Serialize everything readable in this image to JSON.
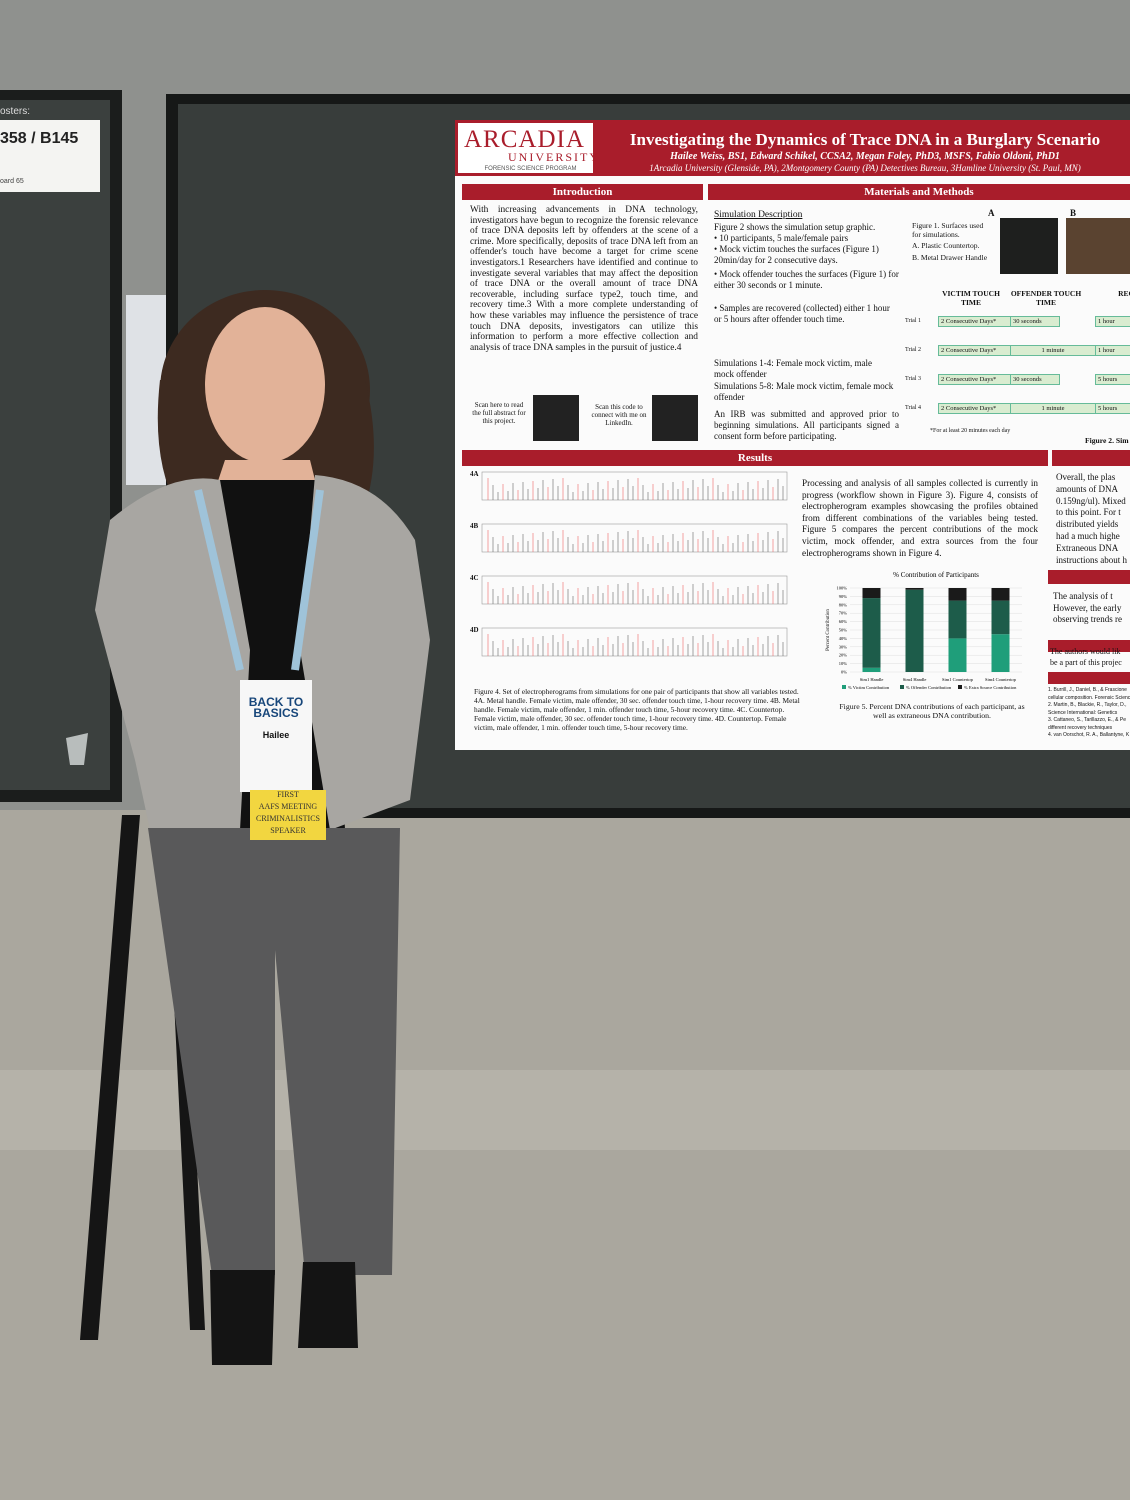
{
  "booth": {
    "sign_top": "osters:",
    "sign": "358 / B145",
    "sign_bottom": "oard 65"
  },
  "poster": {
    "logo": "ARCADIA",
    "logo_sub": "UNIVERSITY",
    "program": "FORENSIC SCIENCE PROGRAM",
    "title": "Investigating the Dynamics of Trace DNA in a Burglary Scenario",
    "authors": "Hailee Weiss, BS1, Edward Schikel, CCSA2, Megan Foley, PhD3, MSFS, Fabio Oldoni, PhD1",
    "affiliations": "1Arcadia University (Glenside, PA), 2Montgomery County (PA) Detectives Bureau, 3Hamline University (St. Paul, MN)",
    "introduction": {
      "heading": "Introduction",
      "text": "With increasing advancements in DNA technology, investigators have begun to recognize the forensic relevance of trace DNA deposits left by offenders at the scene of a crime. More specifically, deposits of trace DNA left from an offender's touch have become a target for crime scene investigators.1 Researchers have identified and continue to investigate several variables that may affect the deposition of trace DNA or the overall amount of trace DNA recoverable, including surface type2, touch time, and recovery time.3 With a more complete understanding of how these variables may influence the persistence of trace touch DNA deposits, investigators can utilize this information to perform a more effective collection and analysis of trace DNA samples in the pursuit of justice.4",
      "qr_abstract": "Scan here to read the full abstract for this project.",
      "qr_linkedin": "Scan this code to connect with me on LinkedIn."
    },
    "methods": {
      "heading": "Materials and Methods",
      "subheading": "Simulation Description",
      "lines": [
        "Figure 2 shows the simulation setup graphic.",
        "• 10 participants, 5 male/female pairs",
        "• Mock victim touches the surfaces (Figure 1) 20min/day for 2 consecutive days.",
        "• Mock offender touches the surfaces (Figure 1) for either 30 seconds or 1 minute.",
        "• Samples are recovered (collected) either 1 hour or 5 hours after offender touch time."
      ],
      "sim_a": "Simulations 1-4: Female mock victim, male mock offender",
      "sim_b": "Simulations 5-8: Male mock victim, female mock offender",
      "irb": "An IRB was submitted and approved prior to beginning simulations. All participants signed a consent form before participating.",
      "figure1": "Figure 1. Surfaces used for simulations.",
      "figure1_a": "A. Plastic Countertop.",
      "figure1_b": "B. Metal Drawer Handle",
      "label_a": "A",
      "label_b": "B",
      "table": {
        "headers": [
          "VICTIM TOUCH TIME",
          "OFFENDER TOUCH TIME",
          "REC"
        ],
        "rows": [
          [
            "Trial 1",
            "2 Consecutive Days*",
            "30 seconds",
            "1 hour"
          ],
          [
            "Trial 2",
            "2 Consecutive Days*",
            "1 minute",
            "1 hour"
          ],
          [
            "Trial 3",
            "2 Consecutive Days*",
            "30 seconds",
            "5 hours"
          ],
          [
            "Trial 4",
            "2 Consecutive Days*",
            "1 minute",
            "5 hours"
          ]
        ],
        "footnote": "*For at least 20 minutes each day",
        "caption": "Figure 2. Sim"
      }
    },
    "results": {
      "heading": "Results",
      "panels": [
        "4A",
        "4B",
        "4C",
        "4D"
      ],
      "text": "Processing and analysis of all samples collected is currently in progress (workflow shown in Figure 3). Figure 4, consists of electropherogram examples showcasing the profiles obtained from different combinations of the variables being tested. Figure 5 compares the percent contributions of the mock victim, mock offender, and extra sources from the four electropherograms shown in Figure 4.",
      "figure4": "Figure 4. Set of electropherograms from simulations for one pair of participants that show all variables tested. 4A. Metal handle. Female victim, male offender, 30 sec. offender touch time, 1-hour recovery time. 4B. Metal handle. Female victim, male offender, 1 min. offender touch time, 5-hour recovery time. 4C. Countertop. Female victim, male offender, 30 sec. offender touch time, 1-hour recovery time. 4D. Countertop. Female victim, male offender, 1 min. offender touch time, 5-hour recovery time.",
      "figure5": "Figure 5. Percent DNA contributions of each participant, as well as extraneous DNA contribution."
    },
    "right_column": {
      "conclusion": [
        "Overall, the plas",
        "amounts of DNA",
        "0.159ng/ul). Mixed",
        "to this point. For t",
        "distributed yields",
        "had a much highe",
        "Extraneous DNA",
        "instructions about h"
      ],
      "future": [
        "The analysis of t",
        "However, the early",
        "observing trends re"
      ],
      "ack": [
        "The authors would lik",
        "be a part of this projec"
      ],
      "refs": [
        "1. Burrill, J., Daniel, B., & Frascione",
        "cellular composition. Forensic Scienc",
        "2. Martin, B., Blackie, R., Taylor, D.,",
        "Science International: Genetics",
        "3. Cattaneo, S., Tarillazzo, E., & Pe",
        "different recovery techniques",
        "4. van Oorschot, R. A., Ballantyne, K"
      ]
    }
  },
  "chart_data": {
    "type": "bar",
    "stacked": true,
    "title": "% Contribution of Participants",
    "ylabel": "Percent Contribution",
    "categories": [
      "Sim1 Handle",
      "Sim4 Handle",
      "Sim1 Countertop",
      "Sim4 Countertop"
    ],
    "series": [
      {
        "name": "% Victim Contribution",
        "color": "#1f9e7a",
        "values": [
          5,
          0,
          40,
          45
        ]
      },
      {
        "name": "% Offender Contribution",
        "color": "#1d5c4a",
        "values": [
          83,
          98,
          45,
          40
        ]
      },
      {
        "name": "% Extra Source Contribution",
        "color": "#1a1a1a",
        "values": [
          12,
          2,
          15,
          15
        ]
      }
    ],
    "ylim": [
      0,
      100
    ],
    "yticks": [
      {
        "value": 0,
        "label": "0%"
      },
      {
        "value": 10,
        "label": "10%"
      },
      {
        "value": 20,
        "label": "20%"
      },
      {
        "value": 30,
        "label": "30%"
      },
      {
        "value": 40,
        "label": "40%"
      },
      {
        "value": 50,
        "label": "50%"
      },
      {
        "value": 60,
        "label": "60%"
      },
      {
        "value": 70,
        "label": "70%"
      },
      {
        "value": 80,
        "label": "80%"
      },
      {
        "value": 90,
        "label": "90%"
      },
      {
        "value": 100,
        "label": "100%"
      }
    ],
    "grid": true,
    "legend": "bottom"
  },
  "badge": {
    "event": "BACK TO BASICS",
    "name": "Hailee",
    "ribbons": [
      "FIRST",
      "AAFS MEETING",
      "CRIMINALISTICS",
      "SPEAKER"
    ]
  }
}
